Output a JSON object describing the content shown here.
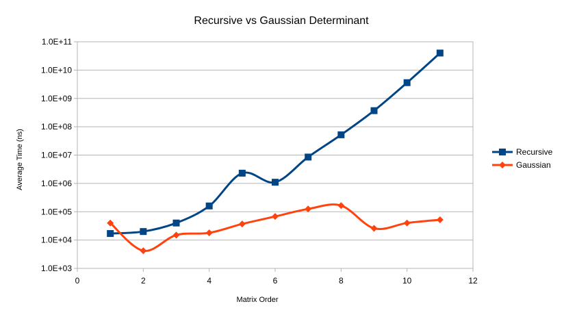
{
  "chart_data": {
    "type": "line",
    "title": "Recursive vs Gaussian Determinant",
    "xlabel": "Matrix Order",
    "ylabel": "Average Time (ns)",
    "xlim": [
      0,
      12
    ],
    "xticks": [
      0,
      2,
      4,
      6,
      8,
      10,
      12
    ],
    "xtick_labels": [
      "0",
      "2",
      "4",
      "6",
      "8",
      "10",
      "12"
    ],
    "y_scale": "log",
    "ylim": [
      1000,
      100000000000
    ],
    "yticks": [
      1000,
      10000,
      100000,
      1000000,
      10000000,
      100000000,
      1000000000,
      10000000000,
      100000000000
    ],
    "ytick_labels": [
      "1.0E+03",
      "1.0E+04",
      "1.0E+05",
      "1.0E+06",
      "1.0E+07",
      "1.0E+08",
      "1.0E+09",
      "1.0E+10",
      "1.0E+11"
    ],
    "grid": "horizontal",
    "legend_position": "right",
    "smoothed": true,
    "series": [
      {
        "name": "Recursive",
        "color": "#004586",
        "marker": "square",
        "x": [
          1,
          2,
          3,
          4,
          5,
          6,
          7,
          8,
          9,
          10,
          11
        ],
        "y": [
          17000,
          20000,
          40000,
          160000,
          2300000,
          1100000,
          8500000,
          52000000,
          370000000,
          3600000000,
          40000000000
        ]
      },
      {
        "name": "Gaussian",
        "color": "#ff420e",
        "marker": "diamond",
        "x": [
          1,
          2,
          3,
          4,
          5,
          6,
          7,
          8,
          9,
          10,
          11
        ],
        "y": [
          40000,
          4200,
          15000,
          18000,
          37000,
          68000,
          125000,
          165000,
          26000,
          40000,
          52000
        ]
      }
    ]
  }
}
